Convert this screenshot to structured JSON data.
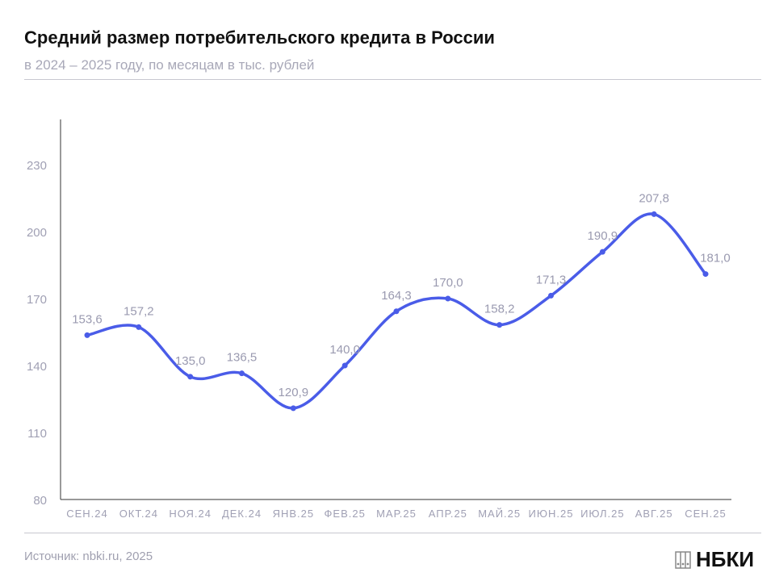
{
  "header": {
    "title": "Средний размер потребительского кредита в России",
    "subtitle": "в 2024 – 2025 году, по месяцам в тыс. рублей"
  },
  "footer": {
    "source": "Источник: nbki.ru, 2025",
    "logo": "НБКИ"
  },
  "colors": {
    "line": "#4a5ce8",
    "label": "#9a9ab0",
    "axis": "#333333"
  },
  "chart_data": {
    "type": "line",
    "title": "Средний размер потребительского кредита в России",
    "categories": [
      "СЕН.24",
      "ОКТ.24",
      "НОЯ.24",
      "ДЕК.24",
      "ЯНВ.25",
      "ФЕВ.25",
      "МАР.25",
      "АПР.25",
      "МАЙ.25",
      "ИЮН.25",
      "ИЮЛ.25",
      "АВГ.25",
      "СЕН.25"
    ],
    "values": [
      153.6,
      157.2,
      135.0,
      136.5,
      120.9,
      140.0,
      164.3,
      170.0,
      158.2,
      171.3,
      190.9,
      207.8,
      181.0
    ],
    "labels": [
      "153,6",
      "157,2",
      "135,0",
      "136,5",
      "120,9",
      "140,0",
      "164,3",
      "170,0",
      "158,2",
      "171,3",
      "190,9",
      "207,8",
      "181,0"
    ],
    "yticks": [
      "80",
      "110",
      "140",
      "170",
      "200",
      "230"
    ],
    "ylim": [
      80,
      230
    ],
    "grid": false,
    "xlabel": "",
    "ylabel": ""
  }
}
